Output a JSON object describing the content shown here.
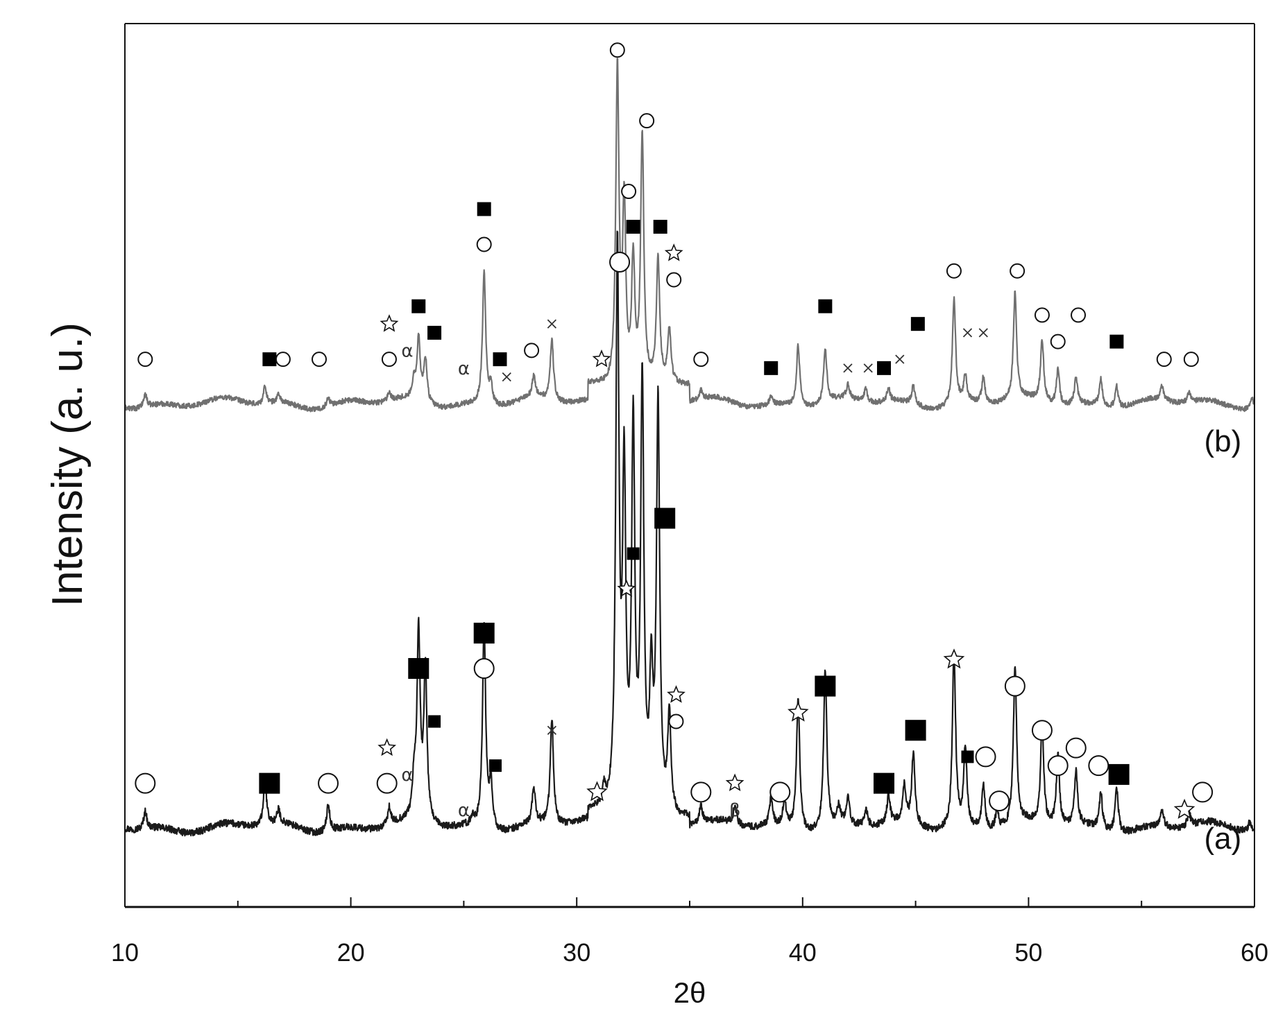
{
  "chart_data": {
    "type": "line",
    "title": "",
    "xlabel": "2θ",
    "ylabel": "Intensity (a. u.)",
    "xlim": [
      10,
      60
    ],
    "x_ticks": [
      10,
      20,
      30,
      40,
      50,
      60
    ],
    "x_tick_labels": [
      "10",
      "20",
      "30",
      "40",
      "50",
      "60"
    ],
    "grid": false,
    "legend": "none",
    "series": [
      {
        "name": "(a)",
        "color": "#1a1a1a",
        "baseline": 0.09,
        "peaks": [
          {
            "x": 10.9,
            "h": 0.02
          },
          {
            "x": 16.2,
            "h": 0.05
          },
          {
            "x": 16.8,
            "h": 0.015
          },
          {
            "x": 19.0,
            "h": 0.03
          },
          {
            "x": 21.7,
            "h": 0.02
          },
          {
            "x": 22.8,
            "h": 0.04
          },
          {
            "x": 23.0,
            "h": 0.21
          },
          {
            "x": 23.3,
            "h": 0.17
          },
          {
            "x": 25.4,
            "h": 0.01
          },
          {
            "x": 25.9,
            "h": 0.23
          },
          {
            "x": 26.2,
            "h": 0.05
          },
          {
            "x": 28.1,
            "h": 0.04
          },
          {
            "x": 28.9,
            "h": 0.12
          },
          {
            "x": 31.2,
            "h": 0.02
          },
          {
            "x": 31.8,
            "h": 0.63
          },
          {
            "x": 32.1,
            "h": 0.37
          },
          {
            "x": 32.5,
            "h": 0.43
          },
          {
            "x": 32.9,
            "h": 0.48
          },
          {
            "x": 33.3,
            "h": 0.14
          },
          {
            "x": 33.6,
            "h": 0.46
          },
          {
            "x": 34.1,
            "h": 0.11
          },
          {
            "x": 35.5,
            "h": 0.02
          },
          {
            "x": 37.0,
            "h": 0.02
          },
          {
            "x": 38.6,
            "h": 0.03
          },
          {
            "x": 39.2,
            "h": 0.03
          },
          {
            "x": 39.8,
            "h": 0.15
          },
          {
            "x": 41.0,
            "h": 0.18
          },
          {
            "x": 41.6,
            "h": 0.02
          },
          {
            "x": 42.0,
            "h": 0.03
          },
          {
            "x": 42.8,
            "h": 0.02
          },
          {
            "x": 43.8,
            "h": 0.03
          },
          {
            "x": 44.5,
            "h": 0.04
          },
          {
            "x": 44.9,
            "h": 0.08
          },
          {
            "x": 46.7,
            "h": 0.2
          },
          {
            "x": 47.2,
            "h": 0.09
          },
          {
            "x": 48.0,
            "h": 0.05
          },
          {
            "x": 48.6,
            "h": 0.02
          },
          {
            "x": 49.4,
            "h": 0.18
          },
          {
            "x": 50.6,
            "h": 0.11
          },
          {
            "x": 51.3,
            "h": 0.08
          },
          {
            "x": 52.1,
            "h": 0.06
          },
          {
            "x": 53.2,
            "h": 0.04
          },
          {
            "x": 53.9,
            "h": 0.05
          },
          {
            "x": 55.9,
            "h": 0.02
          },
          {
            "x": 57.1,
            "h": 0.015
          },
          {
            "x": 59.8,
            "h": 0.01
          }
        ]
      },
      {
        "name": "(b)",
        "color": "#707070",
        "baseline": 0.57,
        "peaks": [
          {
            "x": 10.9,
            "h": 0.015
          },
          {
            "x": 16.2,
            "h": 0.02
          },
          {
            "x": 16.8,
            "h": 0.01
          },
          {
            "x": 19.0,
            "h": 0.01
          },
          {
            "x": 21.7,
            "h": 0.01
          },
          {
            "x": 22.8,
            "h": 0.02
          },
          {
            "x": 23.0,
            "h": 0.07
          },
          {
            "x": 23.3,
            "h": 0.05
          },
          {
            "x": 25.9,
            "h": 0.15
          },
          {
            "x": 26.2,
            "h": 0.02
          },
          {
            "x": 28.1,
            "h": 0.025
          },
          {
            "x": 28.9,
            "h": 0.07
          },
          {
            "x": 31.8,
            "h": 0.36
          },
          {
            "x": 32.1,
            "h": 0.2
          },
          {
            "x": 32.5,
            "h": 0.14
          },
          {
            "x": 32.9,
            "h": 0.28
          },
          {
            "x": 33.6,
            "h": 0.14
          },
          {
            "x": 34.1,
            "h": 0.06
          },
          {
            "x": 35.5,
            "h": 0.01
          },
          {
            "x": 38.6,
            "h": 0.01
          },
          {
            "x": 39.8,
            "h": 0.07
          },
          {
            "x": 41.0,
            "h": 0.06
          },
          {
            "x": 42.0,
            "h": 0.015
          },
          {
            "x": 42.8,
            "h": 0.015
          },
          {
            "x": 43.8,
            "h": 0.015
          },
          {
            "x": 44.9,
            "h": 0.02
          },
          {
            "x": 46.7,
            "h": 0.12
          },
          {
            "x": 47.2,
            "h": 0.03
          },
          {
            "x": 48.0,
            "h": 0.03
          },
          {
            "x": 49.4,
            "h": 0.12
          },
          {
            "x": 50.6,
            "h": 0.07
          },
          {
            "x": 51.3,
            "h": 0.04
          },
          {
            "x": 52.1,
            "h": 0.03
          },
          {
            "x": 53.2,
            "h": 0.03
          },
          {
            "x": 53.9,
            "h": 0.025
          },
          {
            "x": 55.9,
            "h": 0.015
          },
          {
            "x": 57.1,
            "h": 0.01
          },
          {
            "x": 59.9,
            "h": 0.01
          }
        ]
      }
    ],
    "series_labels": [
      {
        "text": "(a)",
        "series": 0,
        "x": 58.6,
        "y": 0.08
      },
      {
        "text": "(b)",
        "series": 1,
        "x": 58.6,
        "y": 0.53
      }
    ],
    "annotations": [
      {
        "symbol": "circle",
        "series": 0,
        "x": 10.9,
        "y": 0.14,
        "size": "large"
      },
      {
        "symbol": "square",
        "series": 0,
        "x": 16.4,
        "y": 0.14,
        "size": "large"
      },
      {
        "symbol": "circle",
        "series": 0,
        "x": 19.0,
        "y": 0.14,
        "size": "large"
      },
      {
        "symbol": "circle",
        "series": 0,
        "x": 21.6,
        "y": 0.14,
        "size": "large"
      },
      {
        "symbol": "star",
        "series": 0,
        "x": 21.6,
        "y": 0.18,
        "size": "small"
      },
      {
        "symbol": "alpha",
        "series": 0,
        "x": 22.5,
        "y": 0.15,
        "size": "small"
      },
      {
        "symbol": "square",
        "series": 0,
        "x": 23.0,
        "y": 0.27,
        "size": "large"
      },
      {
        "symbol": "square",
        "series": 0,
        "x": 23.7,
        "y": 0.21,
        "size": "small"
      },
      {
        "symbol": "alpha",
        "series": 0,
        "x": 25.0,
        "y": 0.11,
        "size": "small"
      },
      {
        "symbol": "square",
        "series": 0,
        "x": 25.9,
        "y": 0.31,
        "size": "large"
      },
      {
        "symbol": "circle",
        "series": 0,
        "x": 25.9,
        "y": 0.27,
        "size": "large"
      },
      {
        "symbol": "square",
        "series": 0,
        "x": 26.4,
        "y": 0.16,
        "size": "small"
      },
      {
        "symbol": "cross",
        "series": 0,
        "x": 28.9,
        "y": 0.2,
        "size": "small"
      },
      {
        "symbol": "star",
        "series": 0,
        "x": 30.9,
        "y": 0.13,
        "size": "large"
      },
      {
        "symbol": "circle",
        "series": 0,
        "x": 31.9,
        "y": 0.73,
        "size": "large"
      },
      {
        "symbol": "star",
        "series": 0,
        "x": 32.2,
        "y": 0.36,
        "size": "small"
      },
      {
        "symbol": "square",
        "series": 0,
        "x": 32.5,
        "y": 0.4,
        "size": "small"
      },
      {
        "symbol": "square",
        "series": 0,
        "x": 33.9,
        "y": 0.44,
        "size": "large"
      },
      {
        "symbol": "star",
        "series": 0,
        "x": 34.4,
        "y": 0.24,
        "size": "small"
      },
      {
        "symbol": "circle",
        "series": 0,
        "x": 34.4,
        "y": 0.21,
        "size": "small"
      },
      {
        "symbol": "circle",
        "series": 0,
        "x": 35.5,
        "y": 0.13,
        "size": "large"
      },
      {
        "symbol": "star",
        "series": 0,
        "x": 37.0,
        "y": 0.14,
        "size": "small"
      },
      {
        "symbol": "beta",
        "series": 0,
        "x": 37.0,
        "y": 0.11,
        "size": "small"
      },
      {
        "symbol": "circle",
        "series": 0,
        "x": 39.0,
        "y": 0.13,
        "size": "large"
      },
      {
        "symbol": "star",
        "series": 0,
        "x": 39.8,
        "y": 0.22,
        "size": "large"
      },
      {
        "symbol": "square",
        "series": 0,
        "x": 41.0,
        "y": 0.25,
        "size": "large"
      },
      {
        "symbol": "square",
        "series": 0,
        "x": 43.6,
        "y": 0.14,
        "size": "large"
      },
      {
        "symbol": "square",
        "series": 0,
        "x": 45.0,
        "y": 0.2,
        "size": "large"
      },
      {
        "symbol": "star",
        "series": 0,
        "x": 46.7,
        "y": 0.28,
        "size": "large"
      },
      {
        "symbol": "square",
        "series": 0,
        "x": 47.3,
        "y": 0.17,
        "size": "small"
      },
      {
        "symbol": "circle",
        "series": 0,
        "x": 48.1,
        "y": 0.17,
        "size": "large"
      },
      {
        "symbol": "circle",
        "series": 0,
        "x": 48.7,
        "y": 0.12,
        "size": "large"
      },
      {
        "symbol": "circle",
        "series": 0,
        "x": 49.4,
        "y": 0.25,
        "size": "large"
      },
      {
        "symbol": "circle",
        "series": 0,
        "x": 50.6,
        "y": 0.2,
        "size": "large"
      },
      {
        "symbol": "circle",
        "series": 0,
        "x": 51.3,
        "y": 0.16,
        "size": "large"
      },
      {
        "symbol": "circle",
        "series": 0,
        "x": 52.1,
        "y": 0.18,
        "size": "large"
      },
      {
        "symbol": "circle",
        "series": 0,
        "x": 53.1,
        "y": 0.16,
        "size": "large"
      },
      {
        "symbol": "square",
        "series": 0,
        "x": 54.0,
        "y": 0.15,
        "size": "large"
      },
      {
        "symbol": "star",
        "series": 0,
        "x": 56.9,
        "y": 0.11,
        "size": "large"
      },
      {
        "symbol": "circle",
        "series": 0,
        "x": 57.7,
        "y": 0.13,
        "size": "large"
      },
      {
        "symbol": "circle",
        "series": 1,
        "x": 10.9,
        "y": 0.62,
        "size": "small"
      },
      {
        "symbol": "square",
        "series": 1,
        "x": 16.4,
        "y": 0.62,
        "size": "small"
      },
      {
        "symbol": "circle",
        "series": 1,
        "x": 17.0,
        "y": 0.62,
        "size": "small"
      },
      {
        "symbol": "circle",
        "series": 1,
        "x": 18.6,
        "y": 0.62,
        "size": "small"
      },
      {
        "symbol": "star",
        "series": 1,
        "x": 21.7,
        "y": 0.66,
        "size": "small"
      },
      {
        "symbol": "circle",
        "series": 1,
        "x": 21.7,
        "y": 0.62,
        "size": "small"
      },
      {
        "symbol": "alpha",
        "series": 1,
        "x": 22.5,
        "y": 0.63,
        "size": "small"
      },
      {
        "symbol": "square",
        "series": 1,
        "x": 23.0,
        "y": 0.68,
        "size": "small"
      },
      {
        "symbol": "square",
        "series": 1,
        "x": 23.7,
        "y": 0.65,
        "size": "small"
      },
      {
        "symbol": "alpha",
        "series": 1,
        "x": 25.0,
        "y": 0.61,
        "size": "small"
      },
      {
        "symbol": "square",
        "series": 1,
        "x": 25.9,
        "y": 0.79,
        "size": "small"
      },
      {
        "symbol": "circle",
        "series": 1,
        "x": 25.9,
        "y": 0.75,
        "size": "small"
      },
      {
        "symbol": "square",
        "series": 1,
        "x": 26.6,
        "y": 0.62,
        "size": "small"
      },
      {
        "symbol": "cross",
        "series": 1,
        "x": 26.9,
        "y": 0.6,
        "size": "small"
      },
      {
        "symbol": "circle",
        "series": 1,
        "x": 28.0,
        "y": 0.63,
        "size": "small"
      },
      {
        "symbol": "cross",
        "series": 1,
        "x": 28.9,
        "y": 0.66,
        "size": "small"
      },
      {
        "symbol": "star",
        "series": 1,
        "x": 31.1,
        "y": 0.62,
        "size": "small"
      },
      {
        "symbol": "circle",
        "series": 1,
        "x": 31.8,
        "y": 0.97,
        "size": "small"
      },
      {
        "symbol": "circle",
        "series": 1,
        "x": 32.3,
        "y": 0.81,
        "size": "small"
      },
      {
        "symbol": "square",
        "series": 1,
        "x": 32.5,
        "y": 0.77,
        "size": "small"
      },
      {
        "symbol": "circle",
        "series": 1,
        "x": 33.1,
        "y": 0.89,
        "size": "small"
      },
      {
        "symbol": "square",
        "series": 1,
        "x": 33.7,
        "y": 0.77,
        "size": "small"
      },
      {
        "symbol": "star",
        "series": 1,
        "x": 34.3,
        "y": 0.74,
        "size": "small"
      },
      {
        "symbol": "circle",
        "series": 1,
        "x": 34.3,
        "y": 0.71,
        "size": "small"
      },
      {
        "symbol": "circle",
        "series": 1,
        "x": 35.5,
        "y": 0.62,
        "size": "small"
      },
      {
        "symbol": "square",
        "series": 1,
        "x": 38.6,
        "y": 0.61,
        "size": "small"
      },
      {
        "symbol": "square",
        "series": 1,
        "x": 41.0,
        "y": 0.68,
        "size": "small"
      },
      {
        "symbol": "cross",
        "series": 1,
        "x": 42.0,
        "y": 0.61,
        "size": "small"
      },
      {
        "symbol": "cross",
        "series": 1,
        "x": 42.9,
        "y": 0.61,
        "size": "small"
      },
      {
        "symbol": "square",
        "series": 1,
        "x": 43.6,
        "y": 0.61,
        "size": "small"
      },
      {
        "symbol": "cross",
        "series": 1,
        "x": 44.3,
        "y": 0.62,
        "size": "small"
      },
      {
        "symbol": "square",
        "series": 1,
        "x": 45.1,
        "y": 0.66,
        "size": "small"
      },
      {
        "symbol": "circle",
        "series": 1,
        "x": 46.7,
        "y": 0.72,
        "size": "small"
      },
      {
        "symbol": "cross",
        "series": 1,
        "x": 47.3,
        "y": 0.65,
        "size": "small"
      },
      {
        "symbol": "cross",
        "series": 1,
        "x": 48.0,
        "y": 0.65,
        "size": "small"
      },
      {
        "symbol": "circle",
        "series": 1,
        "x": 49.5,
        "y": 0.72,
        "size": "small"
      },
      {
        "symbol": "circle",
        "series": 1,
        "x": 50.6,
        "y": 0.67,
        "size": "small"
      },
      {
        "symbol": "circle",
        "series": 1,
        "x": 51.3,
        "y": 0.64,
        "size": "small"
      },
      {
        "symbol": "circle",
        "series": 1,
        "x": 52.2,
        "y": 0.67,
        "size": "small"
      },
      {
        "symbol": "square",
        "series": 1,
        "x": 53.9,
        "y": 0.64,
        "size": "small"
      },
      {
        "symbol": "circle",
        "series": 1,
        "x": 56.0,
        "y": 0.62,
        "size": "small"
      },
      {
        "symbol": "circle",
        "series": 1,
        "x": 57.2,
        "y": 0.62,
        "size": "small"
      }
    ]
  }
}
